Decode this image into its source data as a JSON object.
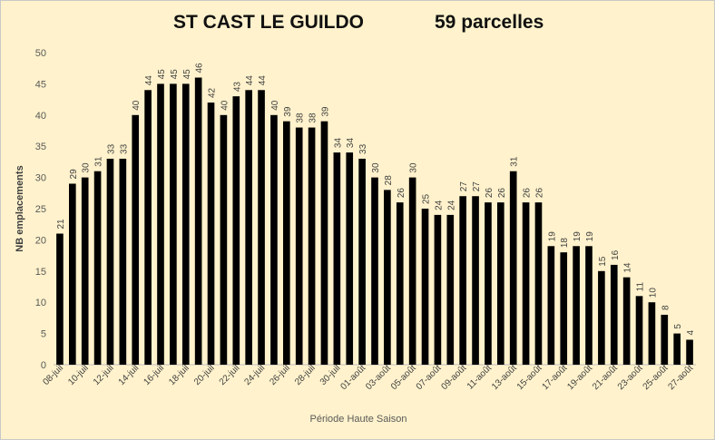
{
  "chart_data": {
    "type": "bar",
    "title": "ST CAST LE GUILDO",
    "subtitle": "59 parcelles",
    "xlabel": "Période Haute Saison",
    "ylabel": "NB emplacements",
    "ylim": [
      0,
      50
    ],
    "yticks": [
      0,
      5,
      10,
      15,
      20,
      25,
      30,
      35,
      40,
      45,
      50
    ],
    "grid": false,
    "legend": "none",
    "data_labels": true,
    "categories": [
      "08-juil",
      "09-juil",
      "10-juil",
      "11-juil",
      "12-juil",
      "13-juil",
      "14-juil",
      "15-juil",
      "16-juil",
      "17-juil",
      "18-juil",
      "19-juil",
      "20-juil",
      "21-juil",
      "22-juil",
      "23-juil",
      "24-juil",
      "25-juil",
      "26-juil",
      "27-juil",
      "28-juil",
      "29-juil",
      "30-juil",
      "31-juil",
      "01-août",
      "02-août",
      "03-août",
      "04-août",
      "05-août",
      "06-août",
      "07-août",
      "08-août",
      "09-août",
      "10-août",
      "11-août",
      "12-août",
      "13-août",
      "14-août",
      "15-août",
      "16-août",
      "17-août",
      "18-août",
      "19-août",
      "20-août",
      "21-août",
      "22-août",
      "23-août",
      "24-août",
      "25-août",
      "26-août",
      "27-août"
    ],
    "tick_labels": [
      "08-juil",
      "10-juil",
      "12-juil",
      "14-juil",
      "16-juil",
      "18-juil",
      "20-juil",
      "22-juil",
      "24-juil",
      "26-juil",
      "28-juil",
      "30-juil",
      "01-août",
      "03-août",
      "05-août",
      "07-août",
      "09-août",
      "11-août",
      "13-août",
      "15-août",
      "17-août",
      "19-août",
      "21-août",
      "23-août",
      "25-août",
      "27-août"
    ],
    "values": [
      21,
      29,
      30,
      31,
      33,
      33,
      40,
      44,
      45,
      45,
      45,
      46,
      42,
      40,
      43,
      44,
      44,
      40,
      39,
      38,
      38,
      39,
      34,
      34,
      33,
      30,
      28,
      26,
      30,
      25,
      24,
      24,
      27,
      27,
      26,
      26,
      31,
      26,
      26,
      19,
      18,
      19,
      19,
      15,
      16,
      14,
      11,
      10,
      8,
      5,
      4
    ],
    "bar_color": "#000000",
    "background_color": "#fff2cc"
  }
}
